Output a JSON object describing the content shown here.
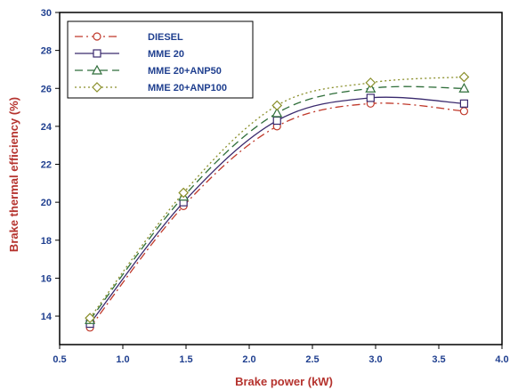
{
  "chart_data": {
    "type": "line",
    "xlabel": "Brake power (kW)",
    "ylabel": "Brake thermal efficiency (%)",
    "xlim": [
      0.5,
      4.0
    ],
    "ylim": [
      12.5,
      30
    ],
    "xticks": [
      0.5,
      1.0,
      1.5,
      2.0,
      2.5,
      3.0,
      3.5,
      4.0
    ],
    "yticks": [
      14,
      16,
      18,
      20,
      22,
      24,
      26,
      28,
      30
    ],
    "xtick_labels": [
      "0.5",
      "1.0",
      "1.5",
      "2.0",
      "2.5",
      "3.0",
      "3.5",
      "4.0"
    ],
    "ytick_labels": [
      "14",
      "16",
      "18",
      "20",
      "22",
      "24",
      "26",
      "28",
      "30"
    ],
    "grid": false,
    "legend_position": "top-left",
    "x": [
      0.74,
      1.48,
      2.22,
      2.96,
      3.7
    ],
    "series": [
      {
        "name": "DIESEL",
        "values": [
          13.4,
          19.8,
          24.0,
          25.2,
          24.8
        ],
        "color": "#c0392b",
        "dash": "dashdot",
        "marker": "circle"
      },
      {
        "name": "MME 20",
        "values": [
          13.6,
          20.0,
          24.3,
          25.5,
          25.2
        ],
        "color": "#3a2a6e",
        "dash": "solid",
        "marker": "square"
      },
      {
        "name": "MME 20+ANP50",
        "values": [
          13.8,
          20.3,
          24.7,
          26.0,
          26.0
        ],
        "color": "#2f6e3a",
        "dash": "dashed",
        "marker": "triangle"
      },
      {
        "name": "MME 20+ANP100",
        "values": [
          13.9,
          20.5,
          25.1,
          26.3,
          26.6
        ],
        "color": "#8a8f2a",
        "dash": "dotted",
        "marker": "diamond"
      }
    ]
  }
}
